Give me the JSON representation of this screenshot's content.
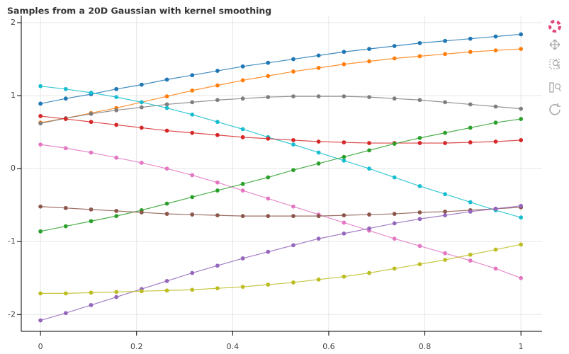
{
  "chart_data": {
    "type": "line",
    "title": "Samples from a 20D Gaussian with kernel smoothing",
    "x": [
      0,
      0.0526,
      0.1053,
      0.1579,
      0.2105,
      0.2632,
      0.3158,
      0.3684,
      0.4211,
      0.4737,
      0.5263,
      0.5789,
      0.6316,
      0.6842,
      0.7368,
      0.7895,
      0.8421,
      0.8947,
      0.9474,
      1
    ],
    "series": [
      {
        "color": "#1f77b4",
        "values": [
          0.89,
          0.96,
          1.02,
          1.09,
          1.15,
          1.22,
          1.28,
          1.34,
          1.4,
          1.45,
          1.5,
          1.55,
          1.6,
          1.64,
          1.68,
          1.72,
          1.75,
          1.78,
          1.81,
          1.84
        ]
      },
      {
        "color": "#ff7f0e",
        "values": [
          0.63,
          0.69,
          0.76,
          0.83,
          0.91,
          0.99,
          1.07,
          1.14,
          1.21,
          1.27,
          1.33,
          1.38,
          1.43,
          1.47,
          1.51,
          1.54,
          1.57,
          1.6,
          1.62,
          1.64
        ]
      },
      {
        "color": "#7f7f7f",
        "values": [
          0.62,
          0.69,
          0.75,
          0.8,
          0.84,
          0.88,
          0.91,
          0.94,
          0.96,
          0.98,
          0.99,
          0.99,
          0.99,
          0.98,
          0.96,
          0.94,
          0.91,
          0.88,
          0.85,
          0.82
        ]
      },
      {
        "color": "#17becf",
        "values": [
          1.13,
          1.09,
          1.04,
          0.98,
          0.91,
          0.83,
          0.74,
          0.64,
          0.54,
          0.43,
          0.33,
          0.22,
          0.11,
          0.0,
          -0.12,
          -0.24,
          -0.35,
          -0.46,
          -0.57,
          -0.67
        ]
      },
      {
        "color": "#d62728",
        "values": [
          0.72,
          0.68,
          0.64,
          0.6,
          0.56,
          0.52,
          0.49,
          0.46,
          0.43,
          0.41,
          0.39,
          0.37,
          0.36,
          0.35,
          0.35,
          0.35,
          0.35,
          0.36,
          0.37,
          0.39
        ]
      },
      {
        "color": "#e377c2",
        "values": [
          0.33,
          0.28,
          0.22,
          0.15,
          0.08,
          0.0,
          -0.09,
          -0.19,
          -0.3,
          -0.41,
          -0.52,
          -0.63,
          -0.74,
          -0.85,
          -0.96,
          -1.06,
          -1.16,
          -1.26,
          -1.37,
          -1.5
        ]
      },
      {
        "color": "#2ca02c",
        "values": [
          -0.86,
          -0.79,
          -0.72,
          -0.65,
          -0.57,
          -0.48,
          -0.39,
          -0.3,
          -0.21,
          -0.12,
          -0.02,
          0.07,
          0.16,
          0.25,
          0.34,
          0.42,
          0.49,
          0.56,
          0.63,
          0.68
        ]
      },
      {
        "color": "#8c564b",
        "values": [
          -0.52,
          -0.54,
          -0.56,
          -0.58,
          -0.6,
          -0.62,
          -0.63,
          -0.64,
          -0.65,
          -0.65,
          -0.65,
          -0.65,
          -0.64,
          -0.63,
          -0.62,
          -0.6,
          -0.59,
          -0.57,
          -0.55,
          -0.53
        ]
      },
      {
        "color": "#9467bd",
        "values": [
          -2.08,
          -1.98,
          -1.87,
          -1.76,
          -1.65,
          -1.54,
          -1.43,
          -1.33,
          -1.23,
          -1.14,
          -1.05,
          -0.96,
          -0.89,
          -0.82,
          -0.75,
          -0.69,
          -0.64,
          -0.59,
          -0.55,
          -0.51
        ]
      },
      {
        "color": "#bcbd22",
        "values": [
          -1.71,
          -1.71,
          -1.7,
          -1.69,
          -1.68,
          -1.67,
          -1.66,
          -1.64,
          -1.62,
          -1.59,
          -1.56,
          -1.52,
          -1.48,
          -1.43,
          -1.37,
          -1.31,
          -1.25,
          -1.18,
          -1.11,
          -1.04
        ]
      }
    ],
    "xlim": [
      -0.04,
      1.044
    ],
    "ylim": [
      -2.23,
      2.097
    ],
    "xticks": [
      0,
      0.2,
      0.4,
      0.6,
      0.8,
      1
    ],
    "yticks": [
      -2,
      -1,
      0,
      1,
      2
    ],
    "grid": true
  }
}
